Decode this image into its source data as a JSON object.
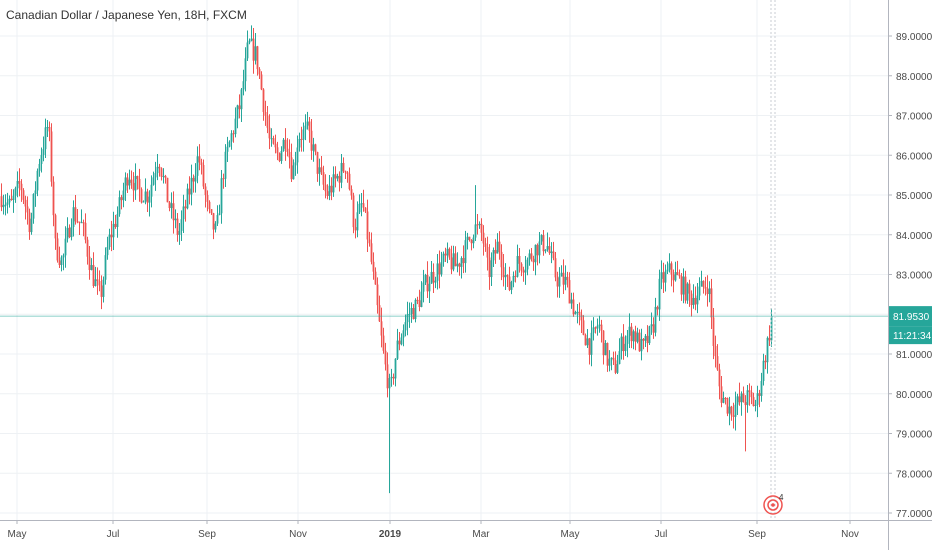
{
  "header": {
    "title": "Canadian Dollar / Japanese Yen, 18H, FXCM"
  },
  "price_scale": {
    "labels": [
      "89.0000",
      "88.0000",
      "87.0000",
      "86.0000",
      "85.0000",
      "84.0000",
      "83.0000",
      "81.0000",
      "80.0000",
      "79.0000",
      "78.0000",
      "77.0000"
    ],
    "current_price": "81.9530",
    "countdown": "11:21:34",
    "current_color": "#26a69a"
  },
  "time_scale": {
    "labels": [
      "May",
      "Jul",
      "Sep",
      "Nov",
      "2019",
      "Mar",
      "May",
      "Jul",
      "Sep",
      "Nov"
    ],
    "bold_label": "2019"
  },
  "marker": {
    "count": "4",
    "color": "#ef5350"
  },
  "colors": {
    "up": "#26a69a",
    "down": "#ef5350",
    "grid": "#eef1f4",
    "axis_text": "#4a4a4a"
  },
  "chart_data": {
    "type": "candlestick",
    "title": "Canadian Dollar / Japanese Yen, 18H, FXCM",
    "ylim": [
      76.8,
      89.6
    ],
    "x_labels": [
      "May",
      "Jul",
      "Sep",
      "Nov",
      "2019",
      "Mar",
      "May",
      "Jul",
      "Sep",
      "Nov"
    ],
    "last_price": 81.953,
    "path": [
      [
        0,
        85.0
      ],
      [
        10,
        84.7
      ],
      [
        20,
        85.3
      ],
      [
        30,
        84.2
      ],
      [
        38,
        85.8
      ],
      [
        48,
        86.8
      ],
      [
        55,
        83.7
      ],
      [
        62,
        83.3
      ],
      [
        72,
        84.6
      ],
      [
        82,
        84.2
      ],
      [
        92,
        83.0
      ],
      [
        100,
        82.4
      ],
      [
        108,
        83.8
      ],
      [
        118,
        84.6
      ],
      [
        128,
        85.6
      ],
      [
        138,
        85.1
      ],
      [
        148,
        85.0
      ],
      [
        158,
        86.0
      ],
      [
        168,
        84.8
      ],
      [
        178,
        84.0
      ],
      [
        188,
        85.0
      ],
      [
        198,
        86.0
      ],
      [
        208,
        84.5
      ],
      [
        216,
        84.0
      ],
      [
        222,
        85.5
      ],
      [
        230,
        86.4
      ],
      [
        240,
        87.3
      ],
      [
        248,
        88.8
      ],
      [
        256,
        88.5
      ],
      [
        262,
        87.5
      ],
      [
        270,
        86.2
      ],
      [
        278,
        86.0
      ],
      [
        286,
        86.5
      ],
      [
        292,
        85.5
      ],
      [
        298,
        86.5
      ],
      [
        308,
        86.6
      ],
      [
        318,
        85.6
      ],
      [
        326,
        85.0
      ],
      [
        336,
        85.4
      ],
      [
        346,
        85.8
      ],
      [
        354,
        84.2
      ],
      [
        362,
        84.8
      ],
      [
        370,
        83.5
      ],
      [
        378,
        81.9
      ],
      [
        384,
        80.8
      ],
      [
        390,
        80.0
      ],
      [
        396,
        81.1
      ],
      [
        402,
        81.6
      ],
      [
        408,
        82.0
      ],
      [
        416,
        82.2
      ],
      [
        426,
        82.8
      ],
      [
        436,
        83.1
      ],
      [
        446,
        83.4
      ],
      [
        456,
        83.2
      ],
      [
        466,
        83.7
      ],
      [
        474,
        84.2
      ],
      [
        482,
        84.0
      ],
      [
        488,
        83.0
      ],
      [
        498,
        83.8
      ],
      [
        508,
        82.6
      ],
      [
        516,
        83.3
      ],
      [
        526,
        83.3
      ],
      [
        536,
        83.7
      ],
      [
        546,
        83.8
      ],
      [
        556,
        82.9
      ],
      [
        566,
        82.8
      ],
      [
        574,
        82.1
      ],
      [
        582,
        81.6
      ],
      [
        590,
        81.2
      ],
      [
        598,
        81.8
      ],
      [
        606,
        80.9
      ],
      [
        614,
        80.6
      ],
      [
        622,
        81.3
      ],
      [
        632,
        81.6
      ],
      [
        642,
        81.1
      ],
      [
        652,
        81.6
      ],
      [
        660,
        82.8
      ],
      [
        670,
        83.1
      ],
      [
        680,
        82.8
      ],
      [
        690,
        82.4
      ],
      [
        700,
        82.6
      ],
      [
        708,
        82.8
      ],
      [
        714,
        81.0
      ],
      [
        720,
        80.0
      ],
      [
        730,
        79.6
      ],
      [
        740,
        79.8
      ],
      [
        748,
        79.9
      ],
      [
        756,
        79.7
      ],
      [
        762,
        80.6
      ],
      [
        768,
        81.4
      ],
      [
        772,
        81.953
      ]
    ]
  }
}
